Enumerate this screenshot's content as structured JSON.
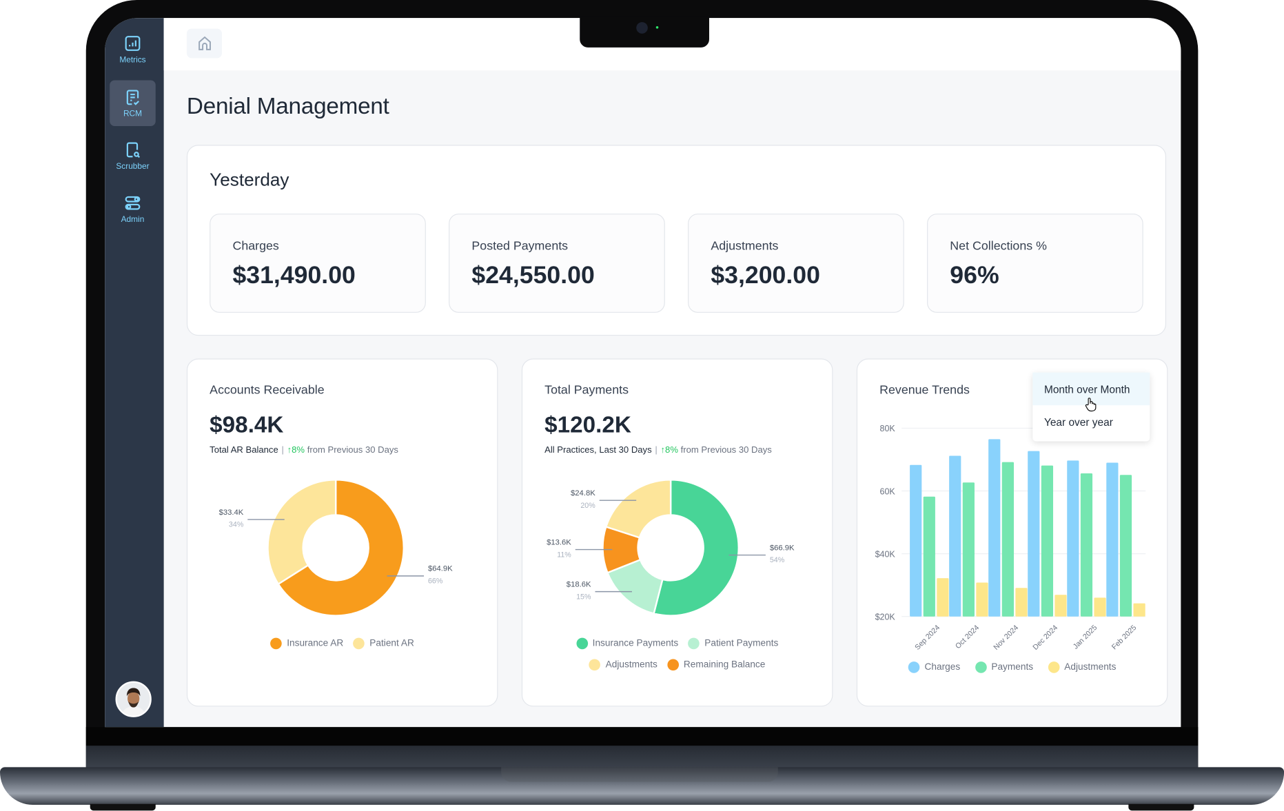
{
  "sidebar": {
    "items": [
      {
        "label": "Metrics",
        "icon": "bar-chart-icon"
      },
      {
        "label": "RCM",
        "icon": "document-check-icon",
        "active": true
      },
      {
        "label": "Scrubber",
        "icon": "document-search-icon"
      },
      {
        "label": "Admin",
        "icon": "toggles-icon"
      }
    ]
  },
  "page": {
    "title": "Denial Management"
  },
  "yesterday": {
    "title": "Yesterday",
    "stats": [
      {
        "label": "Charges",
        "value": "$31,490.00"
      },
      {
        "label": "Posted Payments",
        "value": "$24,550.00"
      },
      {
        "label": "Adjustments",
        "value": "$3,200.00"
      },
      {
        "label": "Net Collections %",
        "value": "96%"
      }
    ]
  },
  "ar": {
    "title": "Accounts Receivable",
    "value": "$98.4K",
    "subtitle": "Total AR Balance",
    "change": "↑8%",
    "change_text": "from Previous 30 Days"
  },
  "payments": {
    "title": "Total Payments",
    "value": "$120.2K",
    "subtitle": "All Practices, Last 30 Days",
    "change": "↑8%",
    "change_text": "from Previous 30 Days"
  },
  "trends": {
    "title": "Revenue Trends",
    "dropdown": {
      "options": [
        "Month over Month",
        "Year over year"
      ],
      "hovered": "Month over Month"
    }
  },
  "chart_data": [
    {
      "type": "pie",
      "donut": true,
      "series": [
        {
          "name": "Insurance AR",
          "value": 64.9,
          "label": "$64.9K",
          "percent": "66%",
          "color": "#f89c1c"
        },
        {
          "name": "Patient AR",
          "value": 33.4,
          "label": "$33.4K",
          "percent": "34%",
          "color": "#fde59a"
        }
      ]
    },
    {
      "type": "pie",
      "donut": true,
      "series": [
        {
          "name": "Insurance Payments",
          "value": 66.9,
          "label": "$66.9K",
          "percent": "54%",
          "color": "#48d597"
        },
        {
          "name": "Patient Payments",
          "value": 18.6,
          "label": "$18.6K",
          "percent": "15%",
          "color": "#b7f0d2"
        },
        {
          "name": "Remaining Balance",
          "value": 13.6,
          "label": "$13.6K",
          "percent": "11%",
          "color": "#f7931e"
        },
        {
          "name": "Adjustments",
          "value": 24.8,
          "label": "$24.8K",
          "percent": "20%",
          "color": "#fde59a"
        }
      ],
      "legend_order": [
        "Insurance Payments",
        "Patient Payments",
        "Adjustments",
        "Remaining Balance"
      ]
    },
    {
      "type": "bar",
      "categories": [
        "Sep 2024",
        "Oct 2024",
        "Nov 2024",
        "Dec 2024",
        "Jan 2025",
        "Feb 2025"
      ],
      "ylim": [
        20000,
        80000
      ],
      "yticks": [
        {
          "v": 80000,
          "label": "80K"
        },
        {
          "v": 60000,
          "label": "60K"
        },
        {
          "v": 40000,
          "label": "$40K"
        },
        {
          "v": 20000,
          "label": "$20K"
        }
      ],
      "grid": true,
      "legend": "bottom",
      "series": [
        {
          "name": "Charges",
          "color": "#89d2fc",
          "values": [
            68300,
            71200,
            76500,
            72700,
            69700,
            69000
          ]
        },
        {
          "name": "Payments",
          "color": "#75e6b0",
          "values": [
            58200,
            62700,
            69200,
            68100,
            65600,
            65100
          ]
        },
        {
          "name": "Adjustments",
          "color": "#fde68a",
          "values": [
            32200,
            30800,
            29100,
            26900,
            26000,
            24200
          ]
        }
      ]
    }
  ]
}
